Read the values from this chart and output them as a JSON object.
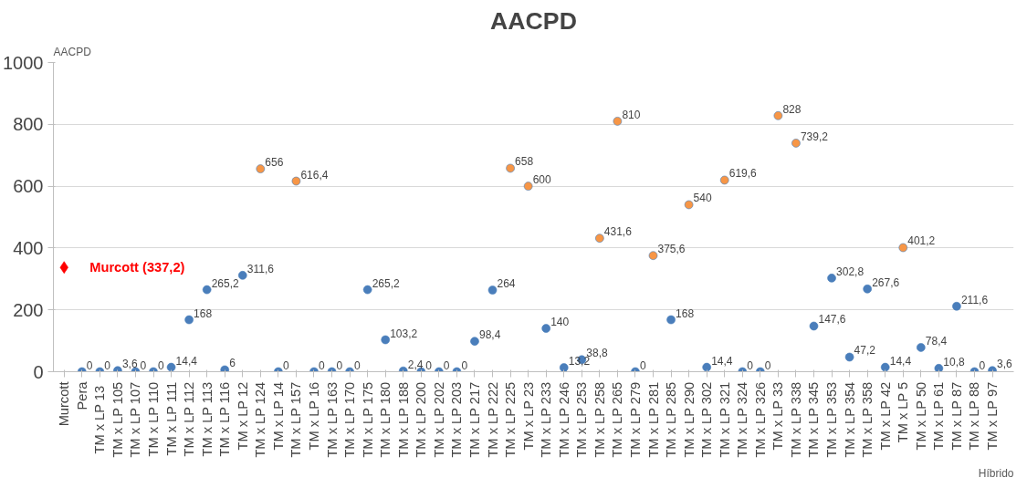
{
  "chart_data": {
    "type": "scatter",
    "title": "AACPD",
    "ylabel": "AACPD",
    "xlabel": "Híbrido",
    "categories": [
      "Murcott",
      "Pera",
      "TM  x LP 13",
      "TM x LP 105",
      "TM x LP 107",
      "TM x LP 110",
      "TM x LP 111",
      "TM x LP 112",
      "TM x LP 113",
      "TM x LP 116",
      "TM x LP 12",
      "TM x LP 124",
      "TM x LP 14",
      "TM x LP 157",
      "TM x LP 16",
      "TM x LP 163",
      "TM x LP 170",
      "TM x LP 175",
      "TM x LP 180",
      "TM x LP 188",
      "TM x LP 200",
      "TM x LP 202",
      "TM x LP 203",
      "TM x LP 217",
      "TM x LP 222",
      "TM x LP 225",
      "TM x LP 23",
      "TM x LP 233",
      "TM x LP 246",
      "TM x LP 253",
      "TM x LP 258",
      "TM x LP 265",
      "TM x LP 279",
      "TM x LP 281",
      "TM x LP 285",
      "TM x LP 290",
      "TM x LP 302",
      "TM x LP 321",
      "TM x LP 324",
      "TM x LP 326",
      "TM x LP 33",
      "TM x LP 338",
      "TM x LP 345",
      "TM x LP 353",
      "TM x LP 354",
      "TM x LP 358",
      "TM x LP 42",
      "TM x LP 5",
      "TM x LP 50",
      "TM x LP 61",
      "TM x LP 87",
      "TM x LP 88",
      "TM x LP 97"
    ],
    "series": [
      {
        "color": "#ff0000",
        "marker": "diamond",
        "values": [
          337.2,
          null,
          null,
          null,
          null,
          null,
          null,
          null,
          null,
          null,
          null,
          null,
          null,
          null,
          null,
          null,
          null,
          null,
          null,
          null,
          null,
          null,
          null,
          null,
          null,
          null,
          null,
          null,
          null,
          null,
          null,
          null,
          null,
          null,
          null,
          null,
          null,
          null,
          null,
          null,
          null,
          null,
          null,
          null,
          null,
          null,
          null,
          null,
          null,
          null,
          null,
          null,
          null
        ]
      },
      {
        "color": "#4a7ebb",
        "marker": "circle",
        "values": [
          null,
          0,
          0,
          3.6,
          0,
          0,
          14.4,
          168,
          265.2,
          6,
          311.6,
          656,
          0,
          616.4,
          0,
          0,
          0,
          265.2,
          103.2,
          2.4,
          0,
          0,
          0,
          98.4,
          264,
          658,
          600,
          140,
          13.2,
          38.8,
          431.6,
          810,
          0,
          375.6,
          168,
          540,
          14.4,
          619.6,
          0,
          0,
          828,
          739.2,
          147.6,
          302.8,
          47.2,
          267.6,
          14.4,
          401.2,
          78.4,
          10.8,
          211.6,
          0,
          3.6
        ],
        "colors": [
          null,
          "#4a7ebb",
          "#4a7ebb",
          "#4a7ebb",
          "#4a7ebb",
          "#4a7ebb",
          "#4a7ebb",
          "#4a7ebb",
          "#4a7ebb",
          "#4a7ebb",
          "#4a7ebb",
          "#f79646",
          "#4a7ebb",
          "#f79646",
          "#4a7ebb",
          "#4a7ebb",
          "#4a7ebb",
          "#4a7ebb",
          "#4a7ebb",
          "#4a7ebb",
          "#4a7ebb",
          "#4a7ebb",
          "#4a7ebb",
          "#4a7ebb",
          "#4a7ebb",
          "#f79646",
          "#f79646",
          "#4a7ebb",
          "#4a7ebb",
          "#4a7ebb",
          "#f79646",
          "#f79646",
          "#4a7ebb",
          "#f79646",
          "#4a7ebb",
          "#f79646",
          "#4a7ebb",
          "#f79646",
          "#4a7ebb",
          "#4a7ebb",
          "#f79646",
          "#f79646",
          "#4a7ebb",
          "#4a7ebb",
          "#4a7ebb",
          "#4a7ebb",
          "#4a7ebb",
          "#f79646",
          "#4a7ebb",
          "#4a7ebb",
          "#4a7ebb",
          "#4a7ebb",
          "#4a7ebb"
        ],
        "value_labels": [
          null,
          "0",
          "0",
          "3,6",
          "0",
          "0",
          "14,4",
          "168",
          "265,2",
          "6",
          "311,6",
          "656",
          "0",
          "616,4",
          "0",
          "0",
          "0",
          "265,2",
          "103,2",
          "2,4",
          "0",
          "0",
          "0",
          "98,4",
          "264",
          "658",
          "600",
          "140",
          "13,2",
          "38,8",
          "431,6",
          "810",
          "0",
          "375,6",
          "168",
          "540",
          "14,4",
          "619,6",
          "0",
          "0",
          "828",
          "739,2",
          "147,6",
          "302,8",
          "47,2",
          "267,6",
          "14,4",
          "401,2",
          "78,4",
          "10,8",
          "211,6",
          "0",
          "3,6"
        ]
      }
    ],
    "annotations": [
      {
        "text": "Murcott (337,2)",
        "x": "Murcott",
        "y": 337.2
      }
    ],
    "ylim": [
      0,
      1000
    ],
    "yticks": [
      0,
      200,
      400,
      600,
      800,
      1000
    ],
    "grid": "y"
  }
}
